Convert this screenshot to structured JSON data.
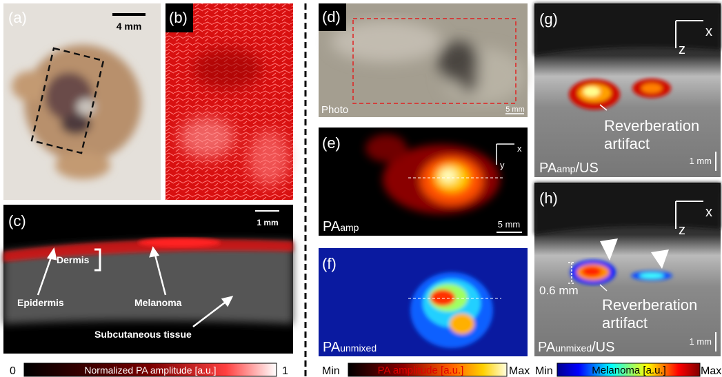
{
  "panels": {
    "a": {
      "label": "(a)",
      "scale": "4 mm"
    },
    "b": {
      "label": "(b)"
    },
    "c": {
      "label": "(c)",
      "scale": "1 mm",
      "annotations": [
        "Dermis",
        "Epidermis",
        "Melanoma",
        "Subcutaneous tissue"
      ]
    },
    "d": {
      "label": "(d)",
      "caption": "Photo",
      "scale": "5 mm"
    },
    "e": {
      "label": "(e)",
      "axes": [
        "x",
        "y"
      ],
      "caption": {
        "main": "PA",
        "sub": "amp"
      },
      "scale": "5 mm"
    },
    "f": {
      "label": "(f)",
      "caption": {
        "main": "PA",
        "sub": "unmixed"
      }
    },
    "g": {
      "label": "(g)",
      "axes": [
        "x",
        "z"
      ],
      "annotation": [
        "Reverberation",
        "artifact"
      ],
      "caption": {
        "main": "PA",
        "sub": "amp",
        "suffix": "/US"
      },
      "scale": "1 mm"
    },
    "h": {
      "label": "(h)",
      "axes": [
        "x",
        "z"
      ],
      "depth": "0.6 mm",
      "annotation": [
        "Reverberation",
        "artifact"
      ],
      "caption": {
        "main": "PA",
        "sub": "unmixed",
        "suffix": "/US"
      },
      "scale": "1 mm"
    }
  },
  "colorbars": [
    {
      "min": "0",
      "title": "Normalized PA amplitude [a.u.]",
      "max": "1"
    },
    {
      "min": "Min",
      "title": "PA amplitude [a.u.]",
      "max": "Max"
    },
    {
      "min": "Min",
      "title": "Melanoma [a.u.]",
      "max": "Max"
    }
  ]
}
